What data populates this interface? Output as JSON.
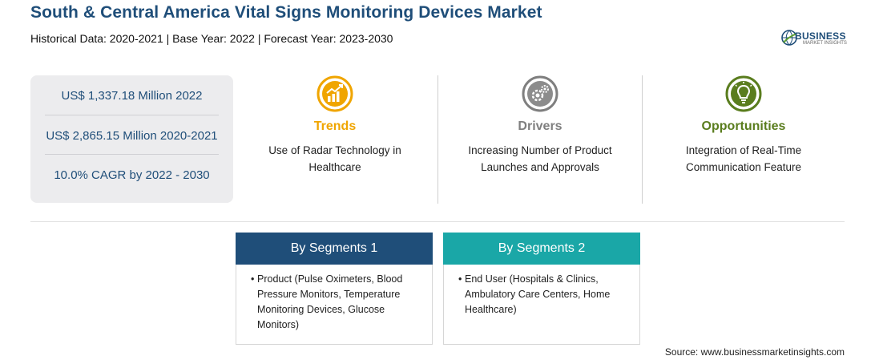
{
  "header": {
    "title": "South & Central America Vital Signs Monitoring Devices Market",
    "subtitle": "Historical Data: 2020-2021 | Base Year: 2022 | Forecast Year: 2023-2030"
  },
  "logo": {
    "word": "BUSINESS",
    "sub": "MARKET INSIGHTS",
    "icon": "logo-globe-icon"
  },
  "stats": [
    "US$ 1,337.18 Million 2022",
    "US$ 2,865.15 Million 2020-2021",
    "10.0% CAGR by 2022 - 2030"
  ],
  "columns": [
    {
      "label": "Trends",
      "desc": "Use of Radar Technology in Healthcare",
      "icon": "growth-chart-icon",
      "color": "#f0a500"
    },
    {
      "label": "Drivers",
      "desc": "Increasing Number of Product Launches and Approvals",
      "icon": "gears-icon",
      "color": "#7f7f7f"
    },
    {
      "label": "Opportunities",
      "desc": "Integration of Real-Time Communication Feature",
      "icon": "lightbulb-icon",
      "color": "#5a7d1e"
    }
  ],
  "segments": [
    {
      "title": "By Segments 1",
      "color": "#1f4e79",
      "item": "Product (Pulse Oximeters, Blood Pressure Monitors, Temperature Monitoring Devices, Glucose Monitors)"
    },
    {
      "title": "By Segments 2",
      "color": "#1aa7a7",
      "item": "End User (Hospitals & Clinics, Ambulatory Care Centers, Home Healthcare)"
    }
  ],
  "bullet": "•",
  "source": "Source: www.businessmarketinsights.com"
}
